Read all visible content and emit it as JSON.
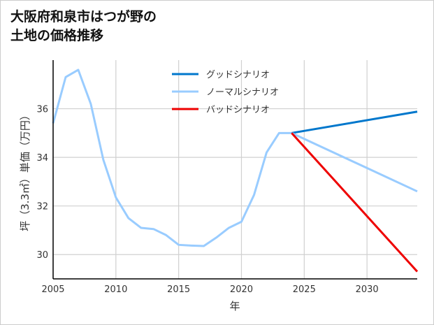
{
  "chart_data": {
    "type": "line",
    "title": [
      "大阪府和泉市はつが野の",
      "土地の価格推移"
    ],
    "xlabel": "年",
    "ylabel": "坪（3.3㎡）単価（万円）",
    "xlim": [
      2005,
      2034
    ],
    "ylim": [
      29,
      38
    ],
    "xticks": [
      2005,
      2010,
      2015,
      2020,
      2025,
      2030
    ],
    "yticks": [
      30,
      32,
      34,
      36
    ],
    "grid": true,
    "legend_position": "top-center",
    "history": {
      "name": "",
      "color": "#99ccff",
      "x": [
        2005,
        2006,
        2007,
        2008,
        2009,
        2010,
        2011,
        2012,
        2013,
        2014,
        2015,
        2016,
        2017,
        2018,
        2019,
        2020,
        2021,
        2022,
        2023,
        2024
      ],
      "y": [
        35.4,
        37.3,
        37.6,
        36.2,
        33.9,
        32.35,
        31.5,
        31.1,
        31.05,
        30.8,
        30.4,
        30.37,
        30.35,
        30.7,
        31.1,
        31.35,
        32.45,
        34.2,
        35.0,
        35.0
      ]
    },
    "series": [
      {
        "name": "グッドシナリオ",
        "color": "#0077cc",
        "x": [
          2024,
          2034
        ],
        "y": [
          35.0,
          35.88
        ]
      },
      {
        "name": "ノーマルシナリオ",
        "color": "#99ccff",
        "x": [
          2024,
          2034
        ],
        "y": [
          35.0,
          32.6
        ]
      },
      {
        "name": "バッドシナリオ",
        "color": "#ee0000",
        "x": [
          2024,
          2034
        ],
        "y": [
          35.0,
          29.3
        ]
      }
    ]
  }
}
